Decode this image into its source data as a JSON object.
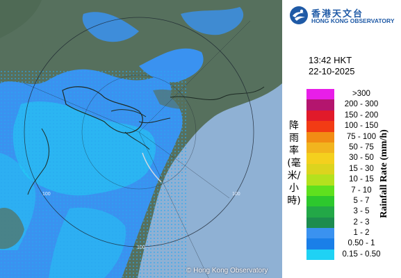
{
  "header": {
    "logo_zh": "香港天文台",
    "logo_en": "HONG KONG OBSERVATORY",
    "logo_icon": "hko-logo-icon"
  },
  "timestamp": {
    "time": "13:42 HKT",
    "date": "22-10-2025"
  },
  "legend": {
    "title_zh": "降雨率(毫米/小時)",
    "title_en": "Rainfall Rate (mm/h)",
    "entries": [
      {
        "label": ">300",
        "color": "#e81ee8"
      },
      {
        "label": "200 - 300",
        "color": "#b4156e"
      },
      {
        "label": "150 - 200",
        "color": "#e11a2a"
      },
      {
        "label": "100 - 150",
        "color": "#f23b14"
      },
      {
        "label": "75 - 100",
        "color": "#f28c14"
      },
      {
        "label": "50 - 75",
        "color": "#f2b41e"
      },
      {
        "label": "30 - 50",
        "color": "#f4d01e"
      },
      {
        "label": "15 - 30",
        "color": "#dcd41e"
      },
      {
        "label": "10 - 15",
        "color": "#b4e11e"
      },
      {
        "label": "7 - 10",
        "color": "#5fe01e"
      },
      {
        "label": "5 - 7",
        "color": "#2dc82d"
      },
      {
        "label": "3 - 5",
        "color": "#23a847"
      },
      {
        "label": "2 - 3",
        "color": "#1d8c4f"
      },
      {
        "label": "1 - 2",
        "color": "#3a92f0"
      },
      {
        "label": "0.50 - 1",
        "color": "#1a7fe8"
      },
      {
        "label": "0.15 - 0.50",
        "color": "#1fd2f4"
      }
    ]
  },
  "map": {
    "range_labels": [
      "100",
      "100",
      "100"
    ],
    "land_color": "#56705d",
    "sea_color": "#8fb1d4",
    "rain_light_color": "#1fd2f4",
    "rain_medium_color": "#1a7fe8"
  },
  "copyright": "© Hong Kong Observatory"
}
